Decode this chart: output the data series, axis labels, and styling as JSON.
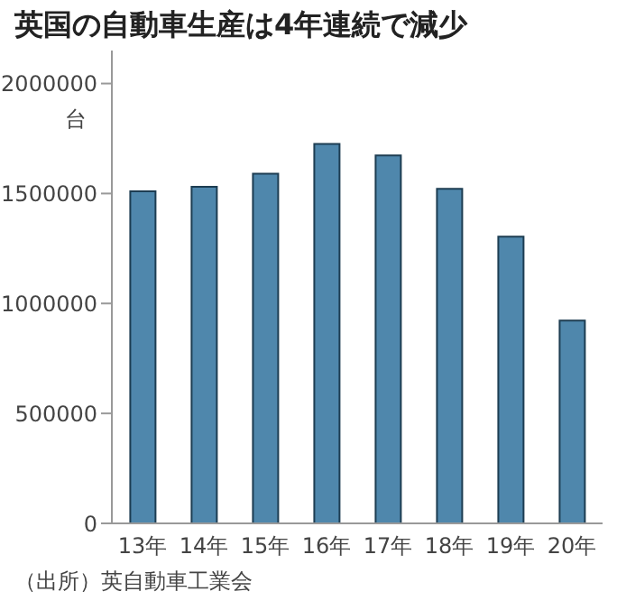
{
  "chart_data": {
    "type": "bar",
    "title": "英国の自動車生産は4年連続で減少",
    "ylabel": "台",
    "categories": [
      "13年",
      "14年",
      "15年",
      "16年",
      "17年",
      "18年",
      "19年",
      "20年"
    ],
    "values": [
      1510000,
      1530000,
      1590000,
      1725000,
      1673000,
      1521000,
      1304000,
      922000
    ],
    "color": "#4f87ac",
    "ylim": [
      0,
      2150000
    ],
    "yticks": [
      0,
      500000,
      1000000,
      1500000,
      2000000
    ],
    "grid": false,
    "annotations": [
      "（出所）英自動車工業会"
    ]
  }
}
